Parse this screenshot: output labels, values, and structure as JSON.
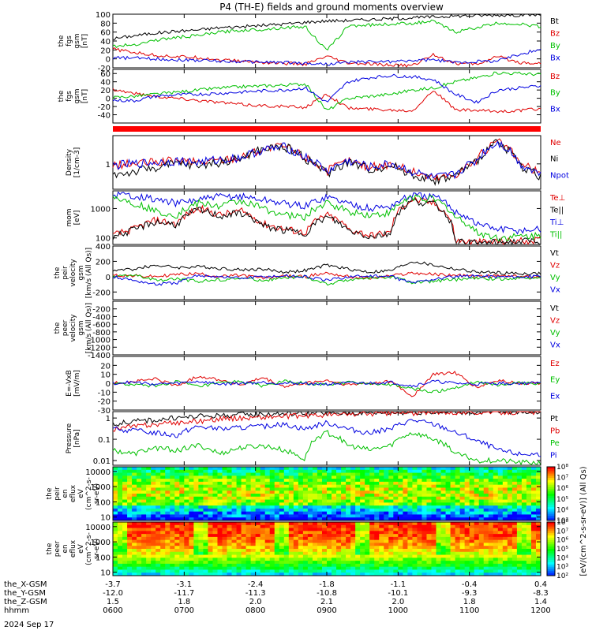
{
  "title": "P4 (TH-E) fields and ground moments overview",
  "date_label": "2024 Sep 17",
  "chart_data": [
    {
      "type": "line",
      "id": "fgs_gsm_full",
      "ylabel": [
        "the",
        "fgs",
        "gsm",
        "[nT]"
      ],
      "ylim": [
        -20,
        100
      ],
      "yticks": [
        -20,
        0,
        20,
        40,
        60,
        80,
        100
      ],
      "series": [
        {
          "name": "Bt",
          "color": "#000000",
          "values": [
            45,
            52,
            58,
            62,
            65,
            70,
            72,
            75,
            78,
            82,
            85,
            86,
            88,
            90,
            92,
            94,
            96,
            97,
            98,
            98,
            99
          ]
        },
        {
          "name": "Bz",
          "color": "#e00000",
          "values": [
            22,
            14,
            8,
            5,
            3,
            -2,
            -5,
            -8,
            -10,
            -12,
            5,
            -10,
            -12,
            -14,
            -15,
            10,
            -10,
            -12,
            5,
            -8,
            -10
          ]
        },
        {
          "name": "By",
          "color": "#00c000",
          "values": [
            28,
            32,
            42,
            48,
            52,
            60,
            64,
            66,
            70,
            72,
            18,
            74,
            76,
            78,
            80,
            84,
            60,
            70,
            80,
            78,
            72
          ]
        },
        {
          "name": "Bx",
          "color": "#0000e0",
          "values": [
            2,
            2,
            0,
            -2,
            -3,
            -5,
            -6,
            -7,
            -8,
            -10,
            -12,
            -8,
            -6,
            -6,
            -4,
            -2,
            -8,
            -6,
            -4,
            10,
            22
          ]
        }
      ]
    },
    {
      "type": "line",
      "id": "fgs_gsm_zoom",
      "ylabel": [
        "the",
        "fgs",
        "gsm",
        "[nT]"
      ],
      "ylim": [
        -60,
        70
      ],
      "yticks": [
        -40,
        -20,
        0,
        20,
        40,
        60
      ],
      "series": [
        {
          "name": "Bz",
          "color": "#e00000",
          "values": [
            22,
            12,
            5,
            0,
            -5,
            -10,
            -15,
            -18,
            -20,
            -22,
            10,
            -24,
            -26,
            -28,
            -30,
            20,
            -28,
            -30,
            -32,
            -30,
            -25
          ]
        },
        {
          "name": "By",
          "color": "#00c000",
          "values": [
            2,
            5,
            10,
            15,
            20,
            25,
            28,
            30,
            32,
            35,
            -30,
            0,
            5,
            10,
            20,
            25,
            40,
            50,
            62,
            60,
            58
          ]
        },
        {
          "name": "Bx",
          "color": "#0000e0",
          "values": [
            -5,
            -6,
            5,
            8,
            10,
            12,
            15,
            18,
            20,
            25,
            -10,
            40,
            50,
            55,
            52,
            45,
            10,
            -10,
            20,
            25,
            30
          ]
        }
      ]
    },
    {
      "type": "line",
      "id": "density",
      "ylabel": [
        "Density",
        "[1/cm-3]"
      ],
      "log": true,
      "ylim": [
        0.2,
        6
      ],
      "yticks": [
        1
      ],
      "series": [
        {
          "name": "Ne",
          "color": "#e00000",
          "values": [
            0.9,
            1.0,
            1.1,
            1.2,
            1.1,
            1.3,
            1.5,
            2.5,
            3.0,
            1.5,
            0.6,
            1.2,
            0.8,
            1.0,
            0.6,
            0.4,
            0.5,
            1.2,
            4.0,
            1.0,
            0.5
          ]
        },
        {
          "name": "Ni",
          "color": "#000000",
          "values": [
            0.5,
            0.6,
            0.8,
            1.0,
            0.9,
            1.1,
            1.4,
            2.5,
            3.0,
            1.4,
            0.5,
            1.1,
            0.7,
            0.9,
            0.5,
            0.35,
            0.45,
            1.1,
            3.8,
            0.9,
            0.45
          ]
        },
        {
          "name": "Npot",
          "color": "#0000e0",
          "values": [
            0.9,
            1.0,
            1.1,
            1.2,
            1.1,
            1.3,
            1.5,
            2.4,
            2.9,
            1.5,
            0.6,
            1.2,
            0.8,
            1.0,
            0.6,
            0.4,
            0.5,
            1.2,
            3.9,
            1.0,
            0.5
          ]
        }
      ]
    },
    {
      "type": "line",
      "id": "temperature",
      "ylabel": [
        "mom",
        "[eV]"
      ],
      "log": true,
      "ylim": [
        60,
        4000
      ],
      "yticks": [
        100,
        1000
      ],
      "series": [
        {
          "name": "Te⊥",
          "color": "#e00000",
          "values": [
            120,
            200,
            400,
            300,
            1000,
            600,
            800,
            300,
            200,
            150,
            600,
            200,
            120,
            150,
            2000,
            1500,
            80,
            70,
            75,
            80,
            85
          ]
        },
        {
          "name": "Te||",
          "color": "#000000",
          "values": [
            110,
            180,
            350,
            280,
            900,
            550,
            700,
            250,
            180,
            140,
            500,
            180,
            110,
            140,
            1800,
            1400,
            75,
            65,
            70,
            75,
            80
          ]
        },
        {
          "name": "Ti⊥",
          "color": "#0000e0",
          "values": [
            3000,
            2800,
            2000,
            1500,
            2000,
            2500,
            2600,
            2000,
            1500,
            1200,
            2500,
            1500,
            1000,
            1200,
            2800,
            2500,
            800,
            300,
            200,
            180,
            200
          ]
        },
        {
          "name": "Ti||",
          "color": "#00c000",
          "values": [
            2500,
            1500,
            800,
            600,
            1500,
            1200,
            1800,
            1000,
            600,
            500,
            1500,
            800,
            600,
            700,
            2500,
            2000,
            500,
            150,
            100,
            110,
            120
          ]
        }
      ]
    },
    {
      "type": "line",
      "id": "peir_velocity",
      "ylabel": [
        "the",
        "peir",
        "velocity",
        "gsm",
        "[km/s (All Qs)]"
      ],
      "ylim": [
        -300,
        400
      ],
      "yticks": [
        -200,
        0,
        200,
        400
      ],
      "series": [
        {
          "name": "Vt",
          "color": "#000000",
          "values": [
            80,
            100,
            150,
            120,
            130,
            110,
            90,
            100,
            60,
            80,
            150,
            100,
            60,
            80,
            200,
            150,
            100,
            60,
            50,
            40,
            40
          ]
        },
        {
          "name": "Vz",
          "color": "#e00000",
          "values": [
            20,
            10,
            0,
            30,
            40,
            0,
            20,
            -20,
            10,
            0,
            50,
            0,
            -20,
            10,
            50,
            30,
            20,
            0,
            10,
            0,
            0
          ]
        },
        {
          "name": "Vy",
          "color": "#00c000",
          "values": [
            0,
            20,
            -50,
            -30,
            -60,
            -40,
            -20,
            -50,
            -20,
            0,
            -100,
            -40,
            -20,
            0,
            -80,
            -60,
            -40,
            -20,
            -30,
            -20,
            -10
          ]
        },
        {
          "name": "Vx",
          "color": "#0000e0",
          "values": [
            0,
            -50,
            -100,
            -80,
            20,
            0,
            -20,
            0,
            10,
            0,
            -50,
            0,
            10,
            0,
            -80,
            -30,
            0,
            10,
            0,
            0,
            0
          ]
        }
      ]
    },
    {
      "type": "line",
      "id": "peer_velocity",
      "ylabel": [
        "the",
        "peer",
        "velocity",
        "gsm",
        "[km/s (All Qs)]"
      ],
      "ylim": [
        -1400,
        0
      ],
      "yticks": [
        -1400,
        -1200,
        -1000,
        -800,
        -600,
        -400,
        -200
      ],
      "series": [
        {
          "name": "Vt",
          "color": "#000000",
          "values": []
        },
        {
          "name": "Vz",
          "color": "#e00000",
          "values": []
        },
        {
          "name": "Vy",
          "color": "#00c000",
          "values": []
        },
        {
          "name": "Vx",
          "color": "#0000e0",
          "values": []
        }
      ]
    },
    {
      "type": "line",
      "id": "efield",
      "ylabel": [
        "E=-VxB",
        "[mV/m]"
      ],
      "ylim": [
        -30,
        30
      ],
      "yticks": [
        -30,
        -20,
        -10,
        0,
        10,
        20
      ],
      "series": [
        {
          "name": "Ez",
          "color": "#e00000",
          "values": [
            0,
            2,
            5,
            -3,
            8,
            4,
            -2,
            6,
            -4,
            0,
            3,
            -2,
            0,
            2,
            -15,
            10,
            12,
            -5,
            3,
            0,
            0
          ]
        },
        {
          "name": "Ey",
          "color": "#00c000",
          "values": [
            0,
            -2,
            -3,
            2,
            -4,
            0,
            2,
            -3,
            2,
            0,
            -2,
            1,
            0,
            -2,
            -6,
            -10,
            -5,
            2,
            -2,
            0,
            0
          ]
        },
        {
          "name": "Ex",
          "color": "#0000e0",
          "values": [
            0,
            1,
            -1,
            0,
            2,
            -1,
            0,
            1,
            0,
            0,
            -1,
            0,
            0,
            1,
            -3,
            2,
            0,
            -1,
            0,
            0,
            0
          ]
        }
      ]
    },
    {
      "type": "line",
      "id": "pressure",
      "ylabel": [
        "Pressure",
        "[nPa]"
      ],
      "log": true,
      "ylim": [
        0.006,
        2
      ],
      "yticks": [
        0.01,
        0.1,
        1.0
      ],
      "series": [
        {
          "name": "Pt",
          "color": "#000000",
          "values": [
            0.5,
            0.7,
            0.8,
            1.0,
            1.2,
            1.3,
            1.4,
            1.5,
            1.6,
            1.6,
            1.7,
            1.7,
            1.8,
            1.8,
            1.9,
            1.9,
            1.9,
            1.9,
            2.0,
            2.0,
            2.0
          ]
        },
        {
          "name": "Pb",
          "color": "#e00000",
          "values": [
            0.3,
            0.4,
            0.5,
            0.6,
            0.7,
            0.9,
            1.0,
            1.1,
            1.2,
            1.3,
            1.4,
            1.5,
            1.6,
            1.7,
            1.7,
            1.8,
            1.9,
            1.9,
            1.9,
            1.9,
            1.9
          ]
        },
        {
          "name": "Pe",
          "color": "#00c000",
          "values": [
            0.03,
            0.02,
            0.04,
            0.03,
            0.05,
            0.02,
            0.04,
            0.05,
            0.03,
            0.01,
            0.2,
            0.05,
            0.03,
            0.05,
            0.2,
            0.1,
            0.02,
            0.01,
            0.01,
            0.008,
            0.008
          ]
        },
        {
          "name": "Pi",
          "color": "#0000e0",
          "values": [
            0.3,
            0.25,
            0.2,
            0.15,
            0.4,
            0.3,
            0.35,
            0.4,
            0.5,
            0.3,
            0.6,
            0.3,
            0.2,
            0.3,
            0.8,
            0.5,
            0.2,
            0.08,
            0.03,
            0.02,
            0.02
          ]
        }
      ]
    },
    {
      "type": "heatmap",
      "id": "peir_eflux",
      "ylabel": [
        "the",
        "peir",
        "en",
        "eflux",
        "eV",
        "(cm^2-s-",
        "sr-eV)"
      ],
      "log": true,
      "ylim": [
        6,
        20000
      ],
      "yticks": [
        10,
        100,
        1000,
        10000
      ]
    },
    {
      "type": "heatmap",
      "id": "peer_eflux",
      "ylabel": [
        "the",
        "peer",
        "en",
        "eflux",
        "eV",
        "(cm^2-s-",
        "sr-eV)"
      ],
      "log": true,
      "ylim": [
        6,
        20000
      ],
      "yticks": [
        10,
        100,
        1000,
        10000
      ]
    }
  ],
  "colorbar": {
    "label": "[eV/(cm^2-s-sr-eV)] (All Qs)",
    "peir_ticks": [
      "10^3",
      "10^4",
      "10^5",
      "10^6",
      "10^7",
      "10^8"
    ],
    "peer_ticks": [
      "10^2",
      "10^3",
      "10^4",
      "10^5",
      "10^6",
      "10^7",
      "10^8"
    ]
  },
  "x_axis": {
    "rows": [
      {
        "label": "the_X-GSM",
        "values": [
          "-3.7",
          "-3.1",
          "-2.4",
          "-1.8",
          "-1.1",
          "-0.4",
          "0.4"
        ]
      },
      {
        "label": "the_Y-GSM",
        "values": [
          "-12.0",
          "-11.7",
          "-11.3",
          "-10.8",
          "-10.1",
          "-9.3",
          "-8.3"
        ]
      },
      {
        "label": "the_Z-GSM",
        "values": [
          "1.5",
          "1.8",
          "2.0",
          "2.1",
          "2.0",
          "1.8",
          "1.4"
        ]
      },
      {
        "label": "hhmm",
        "values": [
          "0600",
          "0700",
          "0800",
          "0900",
          "1000",
          "1100",
          "1200"
        ]
      }
    ]
  }
}
